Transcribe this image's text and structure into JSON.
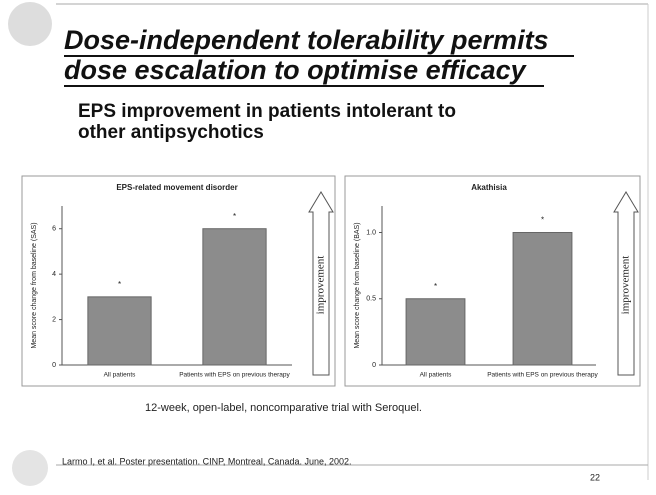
{
  "slide": {
    "title_lines": [
      "Dose-independent tolerability permits",
      "dose escalation to optimise efficacy"
    ],
    "subtitle_lines": [
      "EPS improvement in patients intolerant to",
      "other antipsychotics"
    ],
    "note": "12-week, open-label, noncomparative trial with Seroquel.",
    "citation": "Larmo I, et al. Poster presentation. CINP, Montreal, Canada. June, 2002.",
    "page": "22"
  },
  "chart_data": [
    {
      "type": "bar",
      "title": "EPS-related movement disorder",
      "y_label": "Mean score change from baseline (SAS)",
      "categories": [
        "All patients",
        "Patients with EPS on previous therapy"
      ],
      "values": [
        3,
        6
      ],
      "bar_labels": [
        "*",
        "*"
      ],
      "color": "#8c8c8c",
      "ylim": [
        0,
        7
      ],
      "yticks": [
        0,
        2,
        4,
        6
      ],
      "arrow_label": "improvement"
    },
    {
      "type": "bar",
      "title": "Akathisia",
      "y_label": "Mean score change from baseline (BAS)",
      "categories": [
        "All patients",
        "Patients with EPS on previous therapy"
      ],
      "values": [
        0.5,
        1
      ],
      "bar_labels": [
        "*",
        "*"
      ],
      "color": "#8c8c8c",
      "ylim": [
        0,
        1.2
      ],
      "yticks": [
        0,
        0.5,
        {
          "value": 1,
          "label": "1.0"
        }
      ],
      "arrow_label": "improvement"
    }
  ]
}
